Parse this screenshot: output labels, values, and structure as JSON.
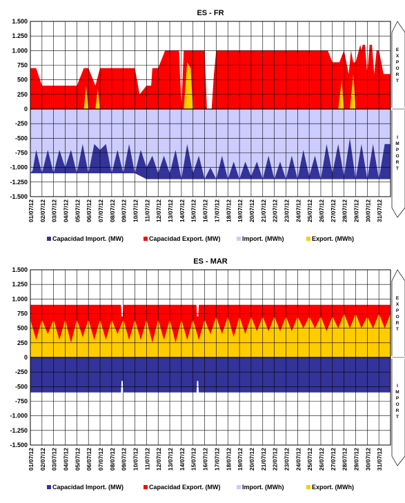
{
  "colors": {
    "import_capacity": "#333399",
    "export_capacity": "#ff0000",
    "import_flow": "#ccccff",
    "export_flow": "#ffcc00"
  },
  "chart_data": [
    {
      "type": "area",
      "title": "ES - FR",
      "ylim": [
        -1500,
        1500
      ],
      "yticks": [
        "1.500",
        "1.250",
        "1.000",
        "750",
        "500",
        "250",
        "0",
        "-250",
        "-500",
        "-750",
        "-1.000",
        "-1.250",
        "-1.500"
      ],
      "xticks": [
        "01/07/12",
        "02/07/12",
        "03/07/12",
        "04/07/12",
        "05/07/12",
        "06/07/12",
        "07/07/12",
        "08/07/12",
        "09/07/12",
        "10/07/12",
        "11/07/12",
        "12/07/12",
        "13/07/12",
        "14/07/12",
        "15/07/12",
        "16/07/12",
        "17/07/12",
        "18/07/12",
        "19/07/12",
        "20/07/12",
        "21/07/12",
        "22/07/12",
        "23/07/12",
        "24/07/12",
        "25/07/12",
        "26/07/12",
        "27/07/12",
        "28/07/12",
        "29/07/12",
        "30/07/12",
        "31/07/12"
      ],
      "grid": true,
      "legend_position": "bottom",
      "series": [
        {
          "name": "Capacidad Import. (MW)",
          "key": "import_capacity",
          "x_days": [
            0,
            1,
            2,
            3,
            4,
            5,
            6,
            7,
            8,
            9,
            10,
            11,
            12,
            13,
            14,
            15,
            16,
            17,
            18,
            19,
            20,
            21,
            22,
            23,
            24,
            25,
            26,
            27,
            28,
            29,
            30,
            31
          ],
          "values": [
            -1100,
            -1100,
            -1100,
            -1100,
            -1100,
            -1100,
            -1100,
            -1100,
            -1100,
            -1100,
            -1200,
            -1200,
            -1200,
            -1200,
            -1200,
            -1200,
            -1200,
            -1200,
            -1200,
            -1200,
            -1200,
            -1200,
            -1200,
            -1200,
            -1200,
            -1200,
            -1200,
            -1200,
            -1200,
            -1200,
            -1200,
            -1200
          ]
        },
        {
          "name": "Capacidad Export. (MW)",
          "key": "export_capacity",
          "x_days": [
            0,
            0.35,
            0.5,
            1.0,
            1.2,
            2.0,
            2.8,
            3.2,
            4.0,
            4.6,
            5.0,
            5.6,
            6.0,
            6.6,
            7.0,
            8.0,
            8.5,
            9.0,
            9.4,
            10.0,
            10.2,
            10.4,
            10.5,
            11.0,
            11.6,
            11.8,
            12.0,
            12.8,
            13.0,
            13.2,
            14.0,
            15.0,
            15.2,
            15.6,
            15.8,
            16.0,
            16.2,
            17.0,
            18.0,
            19.0,
            20.0,
            21.0,
            22.0,
            23.0,
            24.0,
            25.0,
            25.6,
            26.0,
            26.6,
            27.0,
            27.4,
            27.6,
            27.8,
            28.0,
            28.4,
            28.5,
            28.6,
            28.8,
            29.0,
            29.2,
            29.4,
            29.6,
            29.8,
            30.0,
            30.4,
            30.6,
            31.0
          ],
          "values": [
            700,
            700,
            700,
            400,
            400,
            400,
            400,
            400,
            400,
            700,
            700,
            400,
            700,
            700,
            700,
            700,
            700,
            700,
            250,
            400,
            400,
            400,
            700,
            700,
            1000,
            1000,
            1000,
            1000,
            0,
            1000,
            1000,
            1000,
            0,
            0,
            600,
            1000,
            1000,
            1000,
            1000,
            1000,
            1000,
            1000,
            1000,
            1000,
            1000,
            1000,
            1000,
            800,
            800,
            1000,
            600,
            1000,
            800,
            800,
            1100,
            1000,
            1100,
            1100,
            600,
            1100,
            1100,
            600,
            1000,
            1000,
            600,
            600,
            600
          ]
        },
        {
          "name": "Import. (MWh)",
          "key": "import_flow",
          "x_days": [
            0,
            0.2,
            0.5,
            1.0,
            1.5,
            2.0,
            2.5,
            3.0,
            3.5,
            4.0,
            4.5,
            5.0,
            5.5,
            6.0,
            6.5,
            7.0,
            7.5,
            8.0,
            8.5,
            9.0,
            9.5,
            10.0,
            10.5,
            11.0,
            11.5,
            12.0,
            12.5,
            13.0,
            13.5,
            14.0,
            14.5,
            15.0,
            15.5,
            16.0,
            16.5,
            17.0,
            17.5,
            18.0,
            18.5,
            19.0,
            19.5,
            20.0,
            20.5,
            21.0,
            21.5,
            22.0,
            22.5,
            23.0,
            23.5,
            24.0,
            24.5,
            25.0,
            25.5,
            26.0,
            26.5,
            27.0,
            27.5,
            28.0,
            28.5,
            29.0,
            29.5,
            30.0,
            30.5,
            31.0
          ],
          "values": [
            -1100,
            -1050,
            -700,
            -1100,
            -700,
            -1100,
            -700,
            -1000,
            -700,
            -1100,
            -600,
            -1100,
            -600,
            -700,
            -600,
            -1100,
            -700,
            -1100,
            -600,
            -1100,
            -700,
            -1000,
            -800,
            -1100,
            -800,
            -1100,
            -700,
            -1200,
            -600,
            -1100,
            -800,
            -1200,
            -1000,
            -1200,
            -800,
            -1200,
            -900,
            -1200,
            -900,
            -1150,
            -900,
            -1200,
            -800,
            -1200,
            -900,
            -1200,
            -800,
            -1200,
            -700,
            -1150,
            -800,
            -1200,
            -600,
            -1100,
            -600,
            -1150,
            -500,
            -1200,
            -600,
            -1200,
            -600,
            -1200,
            -600,
            -600
          ]
        },
        {
          "name": "Export. (MWh)",
          "key": "export_flow",
          "x_days": [
            4.6,
            4.8,
            5.0,
            5.6,
            5.8,
            6.0,
            13.2,
            13.5,
            13.8,
            14.0,
            26.5,
            26.8,
            27.0,
            27.5,
            27.8,
            28.0
          ],
          "values": [
            0,
            400,
            0,
            0,
            350,
            0,
            0,
            800,
            700,
            0,
            0,
            500,
            0,
            0,
            600,
            0
          ]
        }
      ]
    },
    {
      "type": "area",
      "title": "ES - MAR",
      "ylim": [
        -1500,
        1500
      ],
      "yticks": [
        "1.500",
        "1.250",
        "1.000",
        "750",
        "500",
        "250",
        "0",
        "-250",
        "-500",
        "-750",
        "-1.000",
        "-1.250",
        "-1.500"
      ],
      "xticks": [
        "01/07/12",
        "02/07/12",
        "03/07/12",
        "04/07/12",
        "05/07/12",
        "06/07/12",
        "07/07/12",
        "08/07/12",
        "09/07/12",
        "10/07/12",
        "11/07/12",
        "12/07/12",
        "13/07/12",
        "14/07/12",
        "15/07/12",
        "16/07/12",
        "17/07/12",
        "18/07/12",
        "19/07/12",
        "20/07/12",
        "21/07/12",
        "22/07/12",
        "23/07/12",
        "24/07/12",
        "25/07/12",
        "26/07/12",
        "27/07/12",
        "28/07/12",
        "29/07/12",
        "30/07/12",
        "31/07/12"
      ],
      "grid": true,
      "legend_position": "bottom",
      "series": [
        {
          "name": "Capacidad Import. (MW)",
          "key": "import_capacity",
          "x_days": [
            0,
            7.8,
            7.85,
            7.95,
            8.0,
            14.3,
            14.35,
            14.45,
            14.5,
            31.0
          ],
          "values": [
            -600,
            -600,
            -400,
            -400,
            -600,
            -600,
            -400,
            -400,
            -600,
            -600
          ]
        },
        {
          "name": "Capacidad Export. (MW)",
          "key": "export_capacity",
          "x_days": [
            0,
            7.8,
            7.85,
            7.95,
            8.0,
            14.3,
            14.35,
            14.45,
            14.5,
            31.0
          ],
          "values": [
            900,
            900,
            700,
            700,
            900,
            900,
            700,
            700,
            900,
            900
          ]
        },
        {
          "name": "Import. (MWh)",
          "key": "import_flow",
          "x_days": [
            0,
            31
          ],
          "values": [
            0,
            0
          ]
        },
        {
          "name": "Export. (MWh)",
          "key": "export_flow",
          "x_days": [
            0,
            0.5,
            1,
            1.5,
            2,
            2.5,
            3,
            3.5,
            4,
            4.5,
            5,
            5.5,
            6,
            6.5,
            7,
            7.5,
            8,
            8.5,
            9,
            9.5,
            10,
            10.5,
            11,
            11.5,
            12,
            12.5,
            13,
            13.5,
            14,
            14.5,
            15,
            15.5,
            16,
            16.5,
            17,
            17.5,
            18,
            18.5,
            19,
            19.5,
            20,
            20.5,
            21,
            21.5,
            22,
            22.5,
            23,
            23.5,
            24,
            24.5,
            25,
            25.5,
            26,
            26.5,
            27,
            27.5,
            28,
            28.5,
            29,
            29.5,
            30,
            30.5,
            31
          ],
          "values": [
            650,
            300,
            650,
            400,
            650,
            300,
            650,
            250,
            650,
            350,
            650,
            300,
            650,
            300,
            650,
            400,
            650,
            300,
            650,
            300,
            650,
            250,
            650,
            300,
            650,
            250,
            650,
            300,
            650,
            300,
            650,
            400,
            700,
            400,
            700,
            350,
            700,
            400,
            700,
            450,
            700,
            450,
            700,
            450,
            700,
            450,
            700,
            500,
            700,
            500,
            700,
            450,
            700,
            500,
            750,
            500,
            750,
            500,
            700,
            500,
            750,
            500,
            750
          ]
        }
      ]
    }
  ],
  "side_labels": {
    "export": "EXPORT",
    "import": "IMPORT"
  }
}
